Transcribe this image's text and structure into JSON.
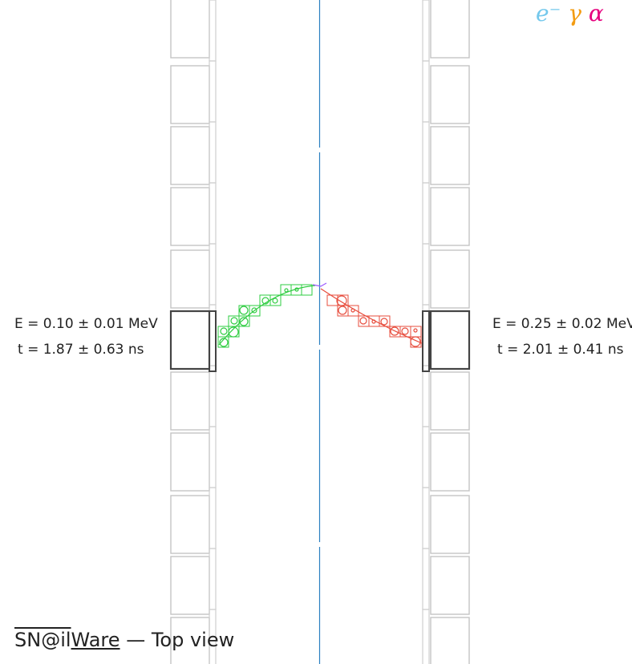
{
  "legend": [
    {
      "name": "electron",
      "symbol": "e⁻",
      "color": "#74c8ec"
    },
    {
      "name": "gamma",
      "symbol": "γ",
      "color": "#f39c12"
    },
    {
      "name": "alpha",
      "symbol": "α",
      "color": "#e6007e"
    }
  ],
  "calorimeter_hits": {
    "left": {
      "energy": "E = 0.10 ± 0.01 MeV",
      "time": "t = 1.87 ± 0.63 ns"
    },
    "right": {
      "energy": "E = 0.25 ± 0.02 MeV",
      "time": "t = 2.01 ± 0.41 ns"
    }
  },
  "tracks": {
    "left_color": "#2ecc40",
    "right_color": "#e74c3c",
    "source_foil_color": "#2b7fc1",
    "vertex_color": "#9b59ff"
  },
  "footer": {
    "brand_part1": "SN@il",
    "brand_part2": "Ware",
    "separator": "—",
    "view": "Top view"
  }
}
